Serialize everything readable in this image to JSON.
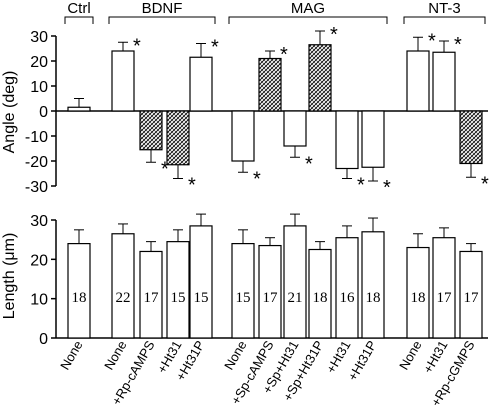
{
  "chart_data": [
    {
      "type": "bar",
      "ylabel": "Angle (deg)",
      "ylim": [
        -30,
        30
      ],
      "yticks": [
        30,
        20,
        10,
        0,
        -10,
        -20,
        -30
      ],
      "groups": [
        {
          "label": "Ctrl",
          "start": 0,
          "end": 0
        },
        {
          "label": "BDNF",
          "start": 1,
          "end": 4
        },
        {
          "label": "MAG",
          "start": 5,
          "end": 10
        },
        {
          "label": "NT-3",
          "start": 11,
          "end": 13
        }
      ],
      "categories": [
        "None",
        "None",
        "+Rp-cAMPS",
        "+Ht31",
        "+Ht31P",
        "None",
        "+Sp-cAMPS",
        "+Sp+Ht31",
        "+Sp+Ht31P",
        "+Ht31",
        "+Ht31P",
        "None",
        "+Ht31",
        "+Rp-cGMPS"
      ],
      "values": [
        1.5,
        24,
        -15.5,
        -21.5,
        21.5,
        -20,
        21,
        -14,
        26.5,
        -23,
        -22.5,
        24,
        23.5,
        -21
      ],
      "errors": [
        3.5,
        3.5,
        5,
        5.5,
        5.5,
        4.5,
        3,
        4.5,
        5.5,
        4,
        5.5,
        5.5,
        4.5,
        5.5
      ],
      "hatched": [
        false,
        false,
        true,
        true,
        false,
        false,
        true,
        false,
        true,
        false,
        false,
        false,
        false,
        true
      ],
      "significant": [
        false,
        true,
        true,
        true,
        true,
        true,
        true,
        true,
        true,
        true,
        true,
        true,
        true,
        true
      ]
    },
    {
      "type": "bar",
      "ylabel": "Length (μm)",
      "ylim": [
        0,
        30
      ],
      "yticks": [
        0,
        10,
        20,
        30
      ],
      "categories": [
        "None",
        "None",
        "+Rp-cAMPS",
        "+Ht31",
        "+Ht31P",
        "None",
        "+Sp-cAMPS",
        "+Sp+Ht31",
        "+Sp+Ht31P",
        "+Ht31",
        "+Ht31P",
        "None",
        "+Ht31",
        "+Rp-cGMPS"
      ],
      "values": [
        24,
        26.5,
        22,
        24.5,
        28.5,
        24,
        23.5,
        28.5,
        22.5,
        25.5,
        27,
        23,
        25.5,
        22
      ],
      "errors": [
        3.5,
        2.5,
        2.5,
        3,
        3,
        3.5,
        2,
        3,
        2,
        3,
        3.5,
        3.5,
        2.5,
        2
      ],
      "counts": [
        "18",
        "22",
        "17",
        "15",
        "15",
        "15",
        "17",
        "21",
        "18",
        "16",
        "18",
        "18",
        "17",
        "17"
      ]
    }
  ]
}
